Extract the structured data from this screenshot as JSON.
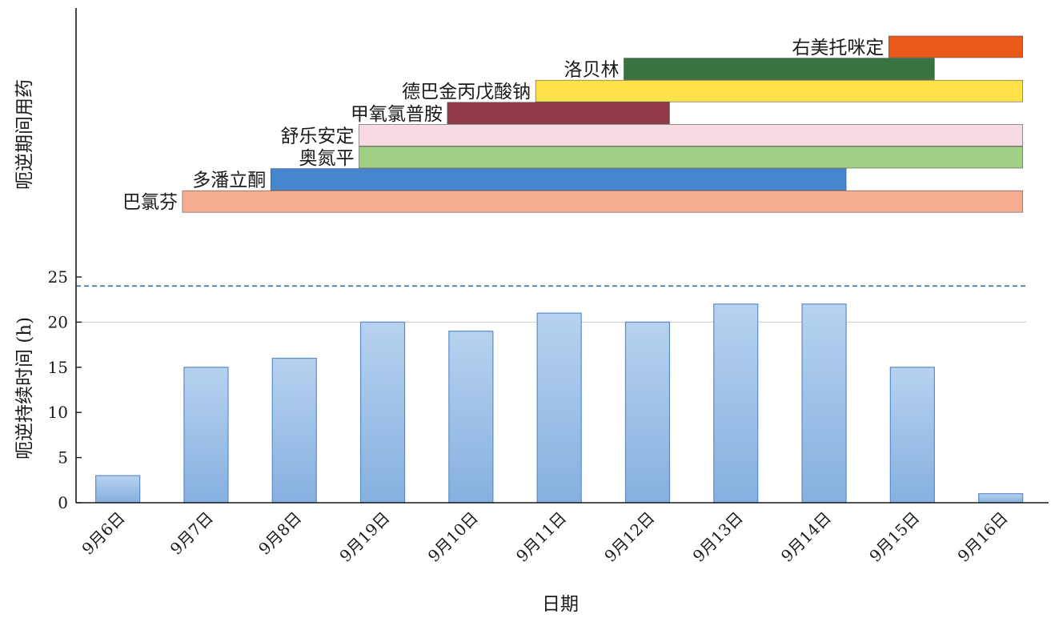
{
  "chart_data": [
    {
      "type": "gantt",
      "ylabel": "呃逆期间用药",
      "items": [
        {
          "name": "右美托咪定",
          "start": "9月15日",
          "end": "9月16日",
          "color": "#e8500e"
        },
        {
          "name": "洛贝林",
          "start": "9月12日",
          "end": "9月15日",
          "color": "#2e6b35"
        },
        {
          "name": "德巴金丙戊酸钠",
          "start": "9月11日",
          "end": "9月16日",
          "color": "#ffe040"
        },
        {
          "name": "甲氧氯普胺",
          "start": "9月10日",
          "end": "9月12日",
          "color": "#8b2e3e"
        },
        {
          "name": "舒乐安定",
          "start": "9月19日",
          "end": "9月16日",
          "color": "#f8d8e0"
        },
        {
          "name": "奥氮平",
          "start": "9月19日",
          "end": "9月16日",
          "color": "#9ccc7e"
        },
        {
          "name": "多潘立酮",
          "start": "9月8日",
          "end": "9月14日",
          "color": "#3a80cc"
        },
        {
          "name": "巴氯芬",
          "start": "9月7日",
          "end": "9月16日",
          "color": "#f4a88a"
        }
      ]
    },
    {
      "type": "bar",
      "xlabel": "日期",
      "ylabel": "呃逆持续时间 (h)",
      "categories": [
        "9月6日",
        "9月7日",
        "9月8日",
        "9月19日",
        "9月10日",
        "9月11日",
        "9月12日",
        "9月13日",
        "9月14日",
        "9月15日",
        "9月16日"
      ],
      "values": [
        3,
        15,
        16,
        20,
        19,
        21,
        20,
        22,
        22,
        15,
        1
      ],
      "ylim": [
        0,
        25
      ],
      "yticks": [
        0,
        5,
        10,
        15,
        20,
        25
      ],
      "reference_line": 24,
      "bar_color": "#8fb8e6",
      "grid": "horizontal at 20"
    }
  ]
}
